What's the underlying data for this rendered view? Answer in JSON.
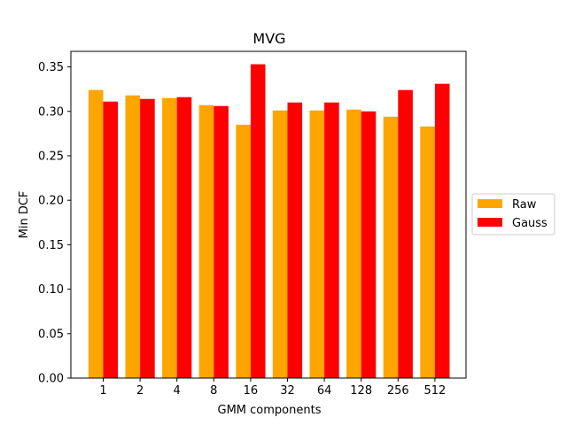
{
  "chart_data": {
    "type": "bar",
    "title": "MVG",
    "xlabel": "GMM components",
    "ylabel": "Min DCF",
    "categories": [
      "1",
      "2",
      "4",
      "8",
      "16",
      "32",
      "64",
      "128",
      "256",
      "512"
    ],
    "series": [
      {
        "name": "Raw",
        "color": "#ffa500",
        "values": [
          0.324,
          0.318,
          0.315,
          0.307,
          0.285,
          0.301,
          0.301,
          0.302,
          0.294,
          0.283
        ]
      },
      {
        "name": "Gauss",
        "color": "#ff0000",
        "values": [
          0.311,
          0.314,
          0.316,
          0.306,
          0.353,
          0.31,
          0.31,
          0.3,
          0.324,
          0.331
        ]
      }
    ],
    "ylim": [
      0,
      0.3675
    ],
    "yticks": [
      "0.00",
      "0.05",
      "0.10",
      "0.15",
      "0.20",
      "0.25",
      "0.30",
      "0.35"
    ],
    "grid": false,
    "legend_position": "center-right"
  }
}
